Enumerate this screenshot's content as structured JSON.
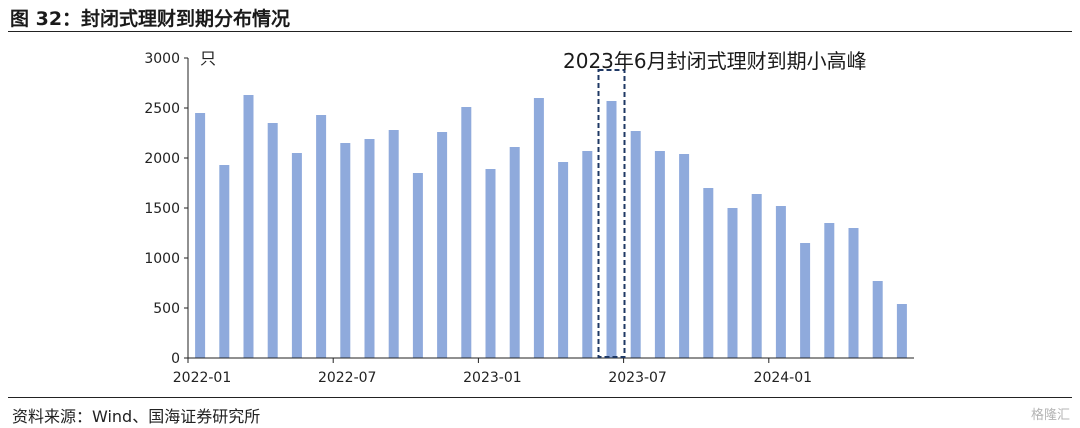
{
  "figure": {
    "title": "图 32：封闭式理财到期分布情况",
    "source": "资料来源：Wind、国海证券研究所",
    "watermark": "格隆汇"
  },
  "chart_data": {
    "type": "bar",
    "ylabel": "只",
    "ylim": [
      0,
      3000
    ],
    "yticks": [
      0,
      500,
      1000,
      1500,
      2000,
      2500,
      3000
    ],
    "x_tick_labels": [
      "2022-01",
      "2022-07",
      "2023-01",
      "2023-07",
      "2024-01"
    ],
    "categories": [
      "2022-01",
      "2022-02",
      "2022-03",
      "2022-04",
      "2022-05",
      "2022-06",
      "2022-07",
      "2022-08",
      "2022-09",
      "2022-10",
      "2022-11",
      "2022-12",
      "2023-01",
      "2023-02",
      "2023-03",
      "2023-04",
      "2023-05",
      "2023-06",
      "2023-07",
      "2023-08",
      "2023-09",
      "2023-10",
      "2023-11",
      "2023-12",
      "2024-01",
      "2024-02",
      "2024-03",
      "2024-04",
      "2024-05",
      "2024-06"
    ],
    "values": [
      2450,
      1930,
      2630,
      2350,
      2050,
      2430,
      2150,
      2190,
      2280,
      1850,
      2260,
      2510,
      1890,
      2110,
      2600,
      1960,
      2070,
      2570,
      2270,
      2070,
      2040,
      1700,
      1500,
      1640,
      1520,
      1150,
      1350,
      1300,
      770,
      540
    ],
    "bar_color": "#8faadc",
    "highlight": {
      "category": "2023-06",
      "label": "2023年6月封闭式理财到期小高峰",
      "box_color": "#1f3864"
    },
    "grid": false
  }
}
